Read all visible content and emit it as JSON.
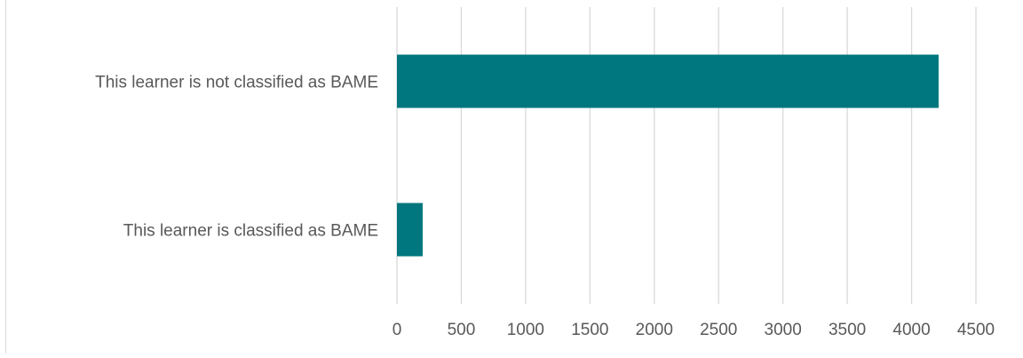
{
  "chart_data": {
    "type": "bar",
    "orientation": "horizontal",
    "title": "",
    "xlabel": "",
    "ylabel": "",
    "categories": [
      "This learner is not classified as BAME",
      "This learner is classified as BAME"
    ],
    "values": [
      4210,
      200
    ],
    "xlim": [
      0,
      4500
    ],
    "x_ticks": [
      "0",
      "500",
      "1000",
      "1500",
      "2000",
      "2500",
      "3000",
      "3500",
      "4000",
      "4500"
    ],
    "grid": "vertical",
    "legend": "none",
    "bar_color": "#00777e",
    "grid_color": "#d9d9d9",
    "label_color": "#595959"
  }
}
